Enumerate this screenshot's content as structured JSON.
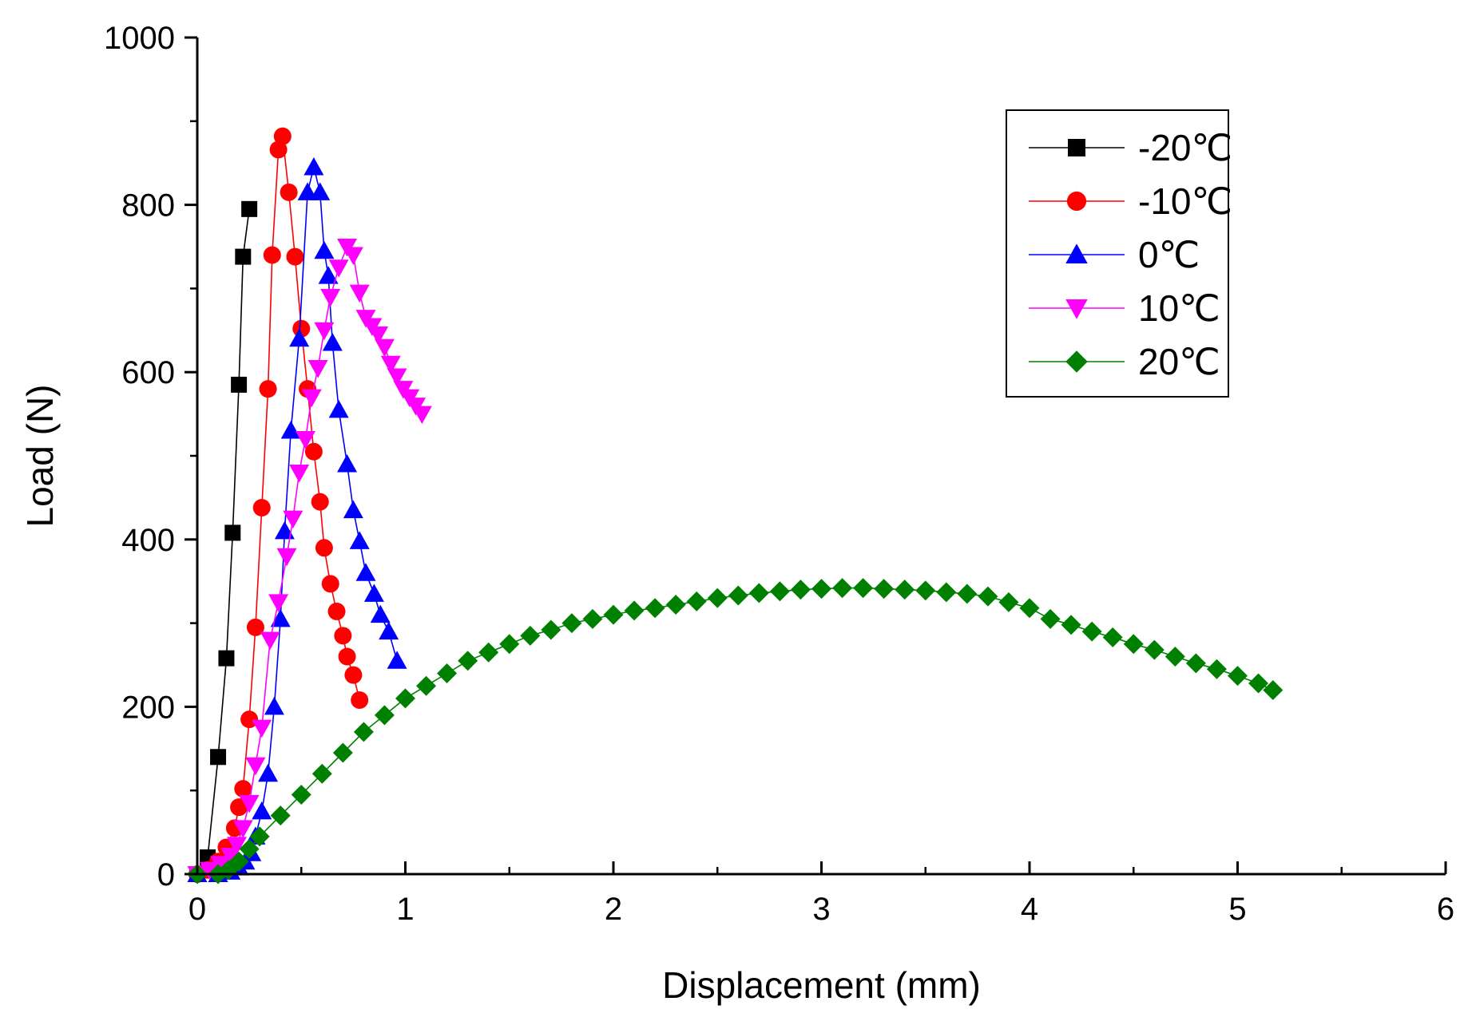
{
  "chart_data": {
    "type": "line",
    "title": "",
    "xlabel": "Displacement  (mm)",
    "ylabel": "Load  (N)",
    "xlim": [
      0,
      6
    ],
    "ylim": [
      0,
      1000
    ],
    "xticks": [
      "0",
      "1",
      "2",
      "3",
      "4",
      "5",
      "6"
    ],
    "yticks": [
      "0",
      "200",
      "400",
      "600",
      "800",
      "1000"
    ],
    "legend_position": "top-right",
    "grid": false,
    "series": [
      {
        "name": "-20℃",
        "color": "#000000",
        "marker": "square",
        "x": [
          0,
          0.05,
          0.1,
          0.14,
          0.17,
          0.2,
          0.22,
          0.25
        ],
        "y": [
          0,
          20,
          140,
          258,
          408,
          585,
          738,
          795
        ]
      },
      {
        "name": "-10℃",
        "color": "#ff0000",
        "marker": "circle",
        "x": [
          0,
          0.05,
          0.1,
          0.14,
          0.18,
          0.2,
          0.22,
          0.25,
          0.28,
          0.31,
          0.34,
          0.36,
          0.39,
          0.41,
          0.44,
          0.47,
          0.5,
          0.53,
          0.56,
          0.59,
          0.61,
          0.64,
          0.67,
          0.7,
          0.72,
          0.75,
          0.78
        ],
        "y": [
          0,
          5,
          15,
          32,
          55,
          80,
          102,
          185,
          295,
          438,
          580,
          740,
          866,
          882,
          815,
          738,
          652,
          580,
          505,
          445,
          390,
          347,
          314,
          285,
          260,
          238,
          208
        ]
      },
      {
        "name": "0℃",
        "color": "#0000ff",
        "marker": "triangle-up",
        "x": [
          0,
          0.1,
          0.16,
          0.2,
          0.23,
          0.26,
          0.28,
          0.31,
          0.34,
          0.37,
          0.4,
          0.42,
          0.45,
          0.49,
          0.53,
          0.56,
          0.59,
          0.61,
          0.63,
          0.65,
          0.68,
          0.72,
          0.75,
          0.78,
          0.81,
          0.85,
          0.88,
          0.92,
          0.96
        ],
        "y": [
          0,
          0,
          3,
          8,
          15,
          25,
          45,
          75,
          120,
          200,
          305,
          410,
          530,
          640,
          815,
          845,
          815,
          745,
          715,
          635,
          555,
          490,
          435,
          398,
          360,
          335,
          310,
          290,
          255
        ]
      },
      {
        "name": "10℃",
        "color": "#ff00ff",
        "marker": "triangle-down",
        "x": [
          0,
          0.06,
          0.11,
          0.16,
          0.19,
          0.22,
          0.25,
          0.28,
          0.31,
          0.35,
          0.39,
          0.43,
          0.46,
          0.49,
          0.52,
          0.55,
          0.58,
          0.61,
          0.64,
          0.68,
          0.72,
          0.75,
          0.78,
          0.81,
          0.84,
          0.87,
          0.9,
          0.93,
          0.96,
          0.99,
          1.02,
          1.05,
          1.08
        ],
        "y": [
          0,
          5,
          12,
          22,
          35,
          55,
          85,
          130,
          175,
          280,
          325,
          380,
          425,
          480,
          520,
          570,
          605,
          650,
          690,
          725,
          750,
          740,
          695,
          665,
          655,
          645,
          630,
          610,
          595,
          580,
          570,
          560,
          550
        ]
      },
      {
        "name": "20℃",
        "color": "#008000",
        "marker": "diamond",
        "x": [
          0,
          0.1,
          0.15,
          0.2,
          0.25,
          0.3,
          0.4,
          0.5,
          0.6,
          0.7,
          0.8,
          0.9,
          1.0,
          1.1,
          1.2,
          1.3,
          1.4,
          1.5,
          1.6,
          1.7,
          1.8,
          1.9,
          2.0,
          2.1,
          2.2,
          2.3,
          2.4,
          2.5,
          2.6,
          2.7,
          2.8,
          2.9,
          3.0,
          3.1,
          3.2,
          3.3,
          3.4,
          3.5,
          3.6,
          3.7,
          3.8,
          3.9,
          4.0,
          4.1,
          4.2,
          4.3,
          4.4,
          4.5,
          4.6,
          4.7,
          4.8,
          4.9,
          5.0,
          5.1,
          5.17
        ],
        "y": [
          0,
          0,
          5,
          15,
          30,
          45,
          70,
          95,
          120,
          145,
          170,
          190,
          210,
          225,
          240,
          255,
          265,
          275,
          285,
          292,
          300,
          305,
          310,
          315,
          318,
          322,
          326,
          330,
          333,
          336,
          338,
          340,
          341,
          342,
          342,
          341,
          340,
          339,
          337,
          335,
          332,
          325,
          318,
          305,
          298,
          290,
          283,
          275,
          268,
          260,
          252,
          245,
          237,
          228,
          220
        ]
      }
    ]
  }
}
